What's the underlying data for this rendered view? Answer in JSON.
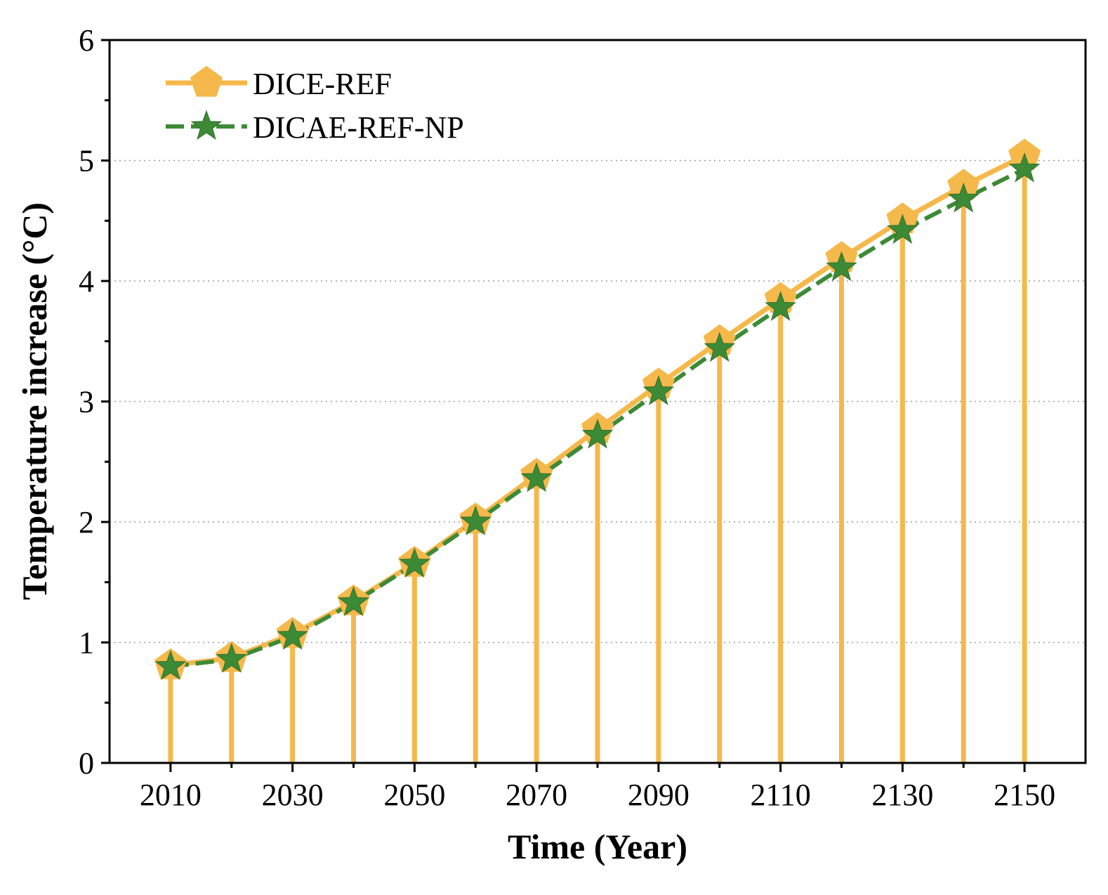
{
  "chart_data": {
    "type": "line",
    "title": "",
    "xlabel": "Time (Year)",
    "ylabel": "Temperature increase (°C)",
    "x": [
      2010,
      2020,
      2030,
      2040,
      2050,
      2060,
      2070,
      2080,
      2090,
      2100,
      2110,
      2120,
      2130,
      2140,
      2150
    ],
    "xlim": [
      2000,
      2160
    ],
    "ylim": [
      0,
      6
    ],
    "xticks": [
      2010,
      2030,
      2050,
      2070,
      2090,
      2110,
      2130,
      2150
    ],
    "xtick_labels": [
      "2010",
      "2030",
      "2050",
      "2070",
      "2090",
      "2110",
      "2130",
      "2150"
    ],
    "yticks": [
      0,
      1,
      2,
      3,
      4,
      5,
      6
    ],
    "ytick_labels": [
      "0",
      "1",
      "2",
      "3",
      "4",
      "5",
      "6"
    ],
    "grid": "horizontal dotted",
    "legend_position": "top-left",
    "series": [
      {
        "name": "DICE-REF",
        "marker": "pentagon",
        "line_style": "solid",
        "drop_lines": true,
        "color": "#F5B84A",
        "values": [
          0.81,
          0.87,
          1.07,
          1.34,
          1.66,
          2.02,
          2.39,
          2.77,
          3.14,
          3.5,
          3.85,
          4.19,
          4.51,
          4.79,
          5.04
        ]
      },
      {
        "name": "DICAE-REF-NP",
        "marker": "star",
        "line_style": "dashed",
        "drop_lines": false,
        "color": "#3D8A36",
        "values": [
          0.8,
          0.86,
          1.05,
          1.33,
          1.65,
          2.0,
          2.36,
          2.72,
          3.08,
          3.44,
          3.78,
          4.11,
          4.42,
          4.68,
          4.93
        ]
      }
    ]
  }
}
